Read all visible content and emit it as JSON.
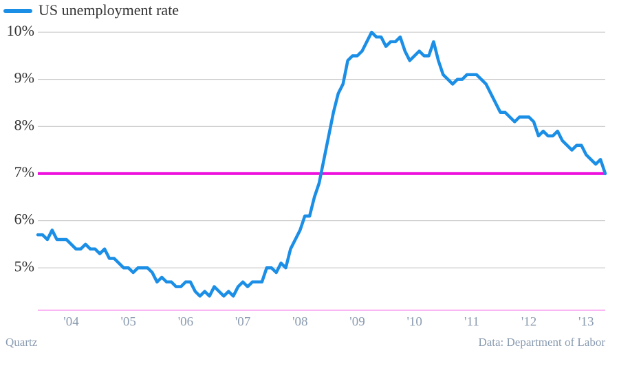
{
  "chart_data": {
    "type": "line",
    "categories": [
      null,
      null,
      null,
      null,
      null,
      null,
      null,
      "'04",
      null,
      null,
      null,
      null,
      null,
      null,
      null,
      null,
      null,
      null,
      null,
      "'05",
      null,
      null,
      null,
      null,
      null,
      null,
      null,
      null,
      null,
      null,
      null,
      "'06",
      null,
      null,
      null,
      null,
      null,
      null,
      null,
      null,
      null,
      null,
      null,
      "'07",
      null,
      null,
      null,
      null,
      null,
      null,
      null,
      null,
      null,
      null,
      null,
      "'08",
      null,
      null,
      null,
      null,
      null,
      null,
      null,
      null,
      null,
      null,
      null,
      "'09",
      null,
      null,
      null,
      null,
      null,
      null,
      null,
      null,
      null,
      null,
      null,
      "'10",
      null,
      null,
      null,
      null,
      null,
      null,
      null,
      null,
      null,
      null,
      null,
      "'11",
      null,
      null,
      null,
      null,
      null,
      null,
      null,
      null,
      null,
      null,
      null,
      "'12",
      null,
      null,
      null,
      null,
      null,
      null,
      null,
      null,
      null,
      null,
      null,
      "'13",
      null,
      null,
      null,
      null
    ],
    "series": [
      {
        "name": "US unemployment rate",
        "color": "#1b8ee6",
        "values": [
          5.7,
          5.7,
          5.6,
          5.8,
          5.6,
          5.6,
          5.6,
          5.5,
          5.4,
          5.4,
          5.5,
          5.4,
          5.4,
          5.3,
          5.4,
          5.2,
          5.2,
          5.1,
          5.0,
          5.0,
          4.9,
          5.0,
          5.0,
          5.0,
          4.9,
          4.7,
          4.8,
          4.7,
          4.7,
          4.6,
          4.6,
          4.7,
          4.7,
          4.5,
          4.4,
          4.5,
          4.4,
          4.6,
          4.5,
          4.4,
          4.5,
          4.4,
          4.6,
          4.7,
          4.6,
          4.7,
          4.7,
          4.7,
          5.0,
          5.0,
          4.9,
          5.1,
          5.0,
          5.4,
          5.6,
          5.8,
          6.1,
          6.1,
          6.5,
          6.8,
          7.3,
          7.8,
          8.3,
          8.7,
          8.9,
          9.4,
          9.5,
          9.5,
          9.6,
          9.8,
          10.0,
          9.9,
          9.9,
          9.7,
          9.8,
          9.8,
          9.9,
          9.6,
          9.4,
          9.5,
          9.6,
          9.5,
          9.5,
          9.8,
          9.4,
          9.1,
          9.0,
          8.9,
          9.0,
          9.0,
          9.1,
          9.1,
          9.1,
          9.0,
          8.9,
          8.7,
          8.5,
          8.3,
          8.3,
          8.2,
          8.1,
          8.2,
          8.2,
          8.2,
          8.1,
          7.8,
          7.9,
          7.8,
          7.8,
          7.9,
          7.7,
          7.6,
          7.5,
          7.6,
          7.6,
          7.4,
          7.3,
          7.2,
          7.3,
          7.0
        ]
      }
    ],
    "ylim": [
      4.1,
      10
    ],
    "yticks": [
      {
        "value": 5,
        "label": "5%"
      },
      {
        "value": 6,
        "label": "6%"
      },
      {
        "value": 7,
        "label": "7%"
      },
      {
        "value": 8,
        "label": "8%"
      },
      {
        "value": 9,
        "label": "9%"
      },
      {
        "value": 10,
        "label": "10%"
      }
    ],
    "grid": true,
    "reference_line": {
      "value": 7,
      "color": "#ee11dd"
    },
    "legend": "top-left",
    "credit": "Quartz",
    "source": "Data: Department of Labor"
  }
}
